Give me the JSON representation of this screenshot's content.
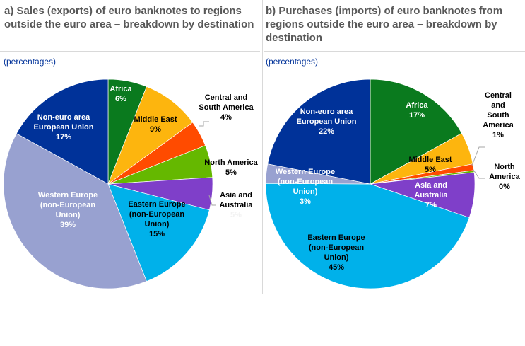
{
  "chart_data": [
    {
      "type": "pie",
      "title": "a) Sales (exports) of euro banknotes to regions outside the euro area – breakdown by destination",
      "unit": "(percentages)",
      "categories": [
        "Africa",
        "Middle East",
        "Central and South America",
        "North America",
        "Asia and Australia",
        "Eastern Europe (non-European Union)",
        "Western Europe (non-European Union)",
        "Non-euro area European Union"
      ],
      "values": [
        6,
        9,
        4,
        5,
        5,
        15,
        39,
        17
      ],
      "labels": [
        "6%",
        "9%",
        "4%",
        "5%",
        "5%",
        "15%",
        "39%",
        "17%"
      ]
    },
    {
      "type": "pie",
      "title": "b) Purchases (imports) of euro banknotes from regions outside the euro area – breakdown by destination",
      "unit": "(percentages)",
      "categories": [
        "Africa",
        "Middle East",
        "Central and South America",
        "North America",
        "Asia and Australia",
        "Eastern Europe (non-European Union)",
        "Western Europe (non-European Union)",
        "Non-euro area European Union"
      ],
      "values": [
        17,
        5,
        1,
        0.3,
        7,
        45,
        3,
        22
      ],
      "labels": [
        "17%",
        "5%",
        "1%",
        "0%",
        "7%",
        "45%",
        "3%",
        "22%"
      ]
    }
  ],
  "colors": [
    "#0a7a1e",
    "#fdb50e",
    "#ff4b00",
    "#65b800",
    "#7f3fc9",
    "#00b1ea",
    "#98a1d0",
    "#003299"
  ]
}
